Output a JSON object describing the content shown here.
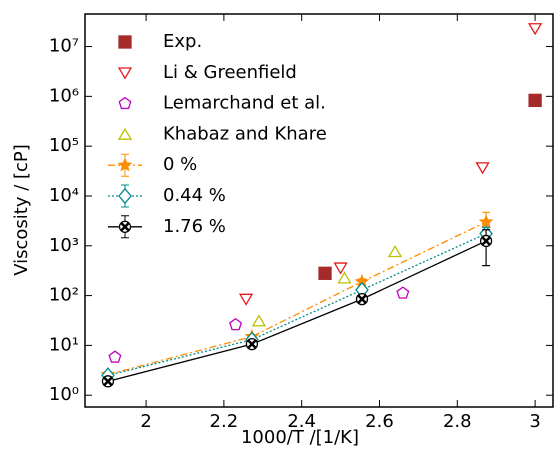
{
  "chart_data": {
    "type": "scatter-line",
    "x_label": "1000/T /[1/K]",
    "y_label": "Viscosity / [cP]",
    "xlim": [
      1.843,
      3.046
    ],
    "xticks": [
      2.0,
      2.2,
      2.4,
      2.6,
      2.8,
      3.0
    ],
    "ylim": [
      0.58,
      45000000
    ],
    "log_y": true,
    "yticks": [
      {
        "value": 1,
        "label": "10⁰"
      },
      {
        "value": 10,
        "label": "10¹"
      },
      {
        "value": 100,
        "label": "10²"
      },
      {
        "value": 1000,
        "label": "10³"
      },
      {
        "value": 10000,
        "label": "10⁴"
      },
      {
        "value": 100000,
        "label": "10⁵"
      },
      {
        "value": 1000000,
        "label": "10⁶"
      },
      {
        "value": 10000000,
        "label": "10⁷"
      }
    ],
    "legend": "upper left",
    "series": [
      {
        "name": "Exp.",
        "color": "#a52a2a",
        "marker": "square",
        "filled": true,
        "line": "none",
        "x": [
          2.46,
          3.0
        ],
        "values": [
          280,
          830000
        ]
      },
      {
        "name": "Li & Greenfield",
        "color": "#e41a1c",
        "marker": "triangle-down",
        "filled": false,
        "line": "none",
        "x": [
          2.257,
          2.5,
          2.865,
          3.0
        ],
        "values": [
          85,
          360,
          37000,
          23000000
        ]
      },
      {
        "name": "Lemarchand et al.",
        "color": "#bf00bf",
        "marker": "pentagon",
        "filled": false,
        "line": "none",
        "x": [
          1.92,
          2.23,
          2.66
        ],
        "values": [
          5.8,
          26,
          112
        ]
      },
      {
        "name": "Khabaz and Khare",
        "color": "#bfbf00",
        "marker": "triangle-up",
        "filled": false,
        "line": "none",
        "x": [
          2.29,
          2.51,
          2.64
        ],
        "values": [
          31,
          225,
          760
        ]
      },
      {
        "name": "0 %",
        "color": "#ff8c00",
        "marker": "star",
        "filled": true,
        "line": "dashdot",
        "x": [
          1.902,
          2.272,
          2.555,
          2.874
        ],
        "values": [
          2.6,
          15,
          190,
          3000
        ],
        "errors": [
          0.2,
          1,
          25,
          1700
        ]
      },
      {
        "name": "0.44 %",
        "color": "#008b8b",
        "marker": "diamond",
        "filled": false,
        "line": "dotted",
        "x": [
          1.902,
          2.272,
          2.555,
          2.874
        ],
        "values": [
          2.5,
          13,
          130,
          1750
        ],
        "errors": [
          0.2,
          1,
          20,
          600
        ]
      },
      {
        "name": "1.76 %",
        "color": "#000000",
        "marker": "xcircle",
        "filled": false,
        "line": "solid",
        "x": [
          1.902,
          2.272,
          2.555,
          2.874
        ],
        "values": [
          1.9,
          10.6,
          85,
          1250
        ],
        "errors": [
          0.2,
          1,
          15,
          850
        ]
      }
    ]
  }
}
